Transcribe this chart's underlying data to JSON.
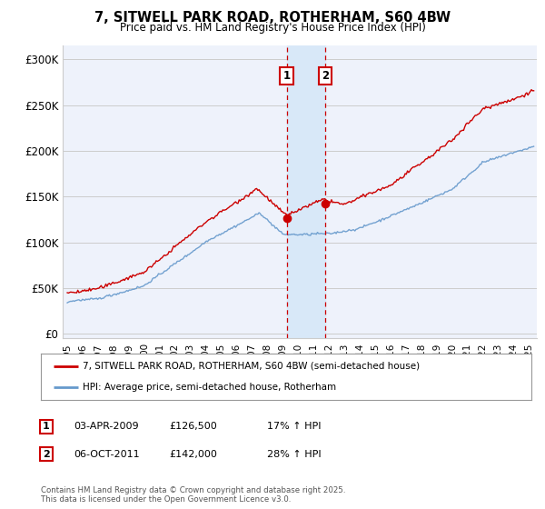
{
  "title": "7, SITWELL PARK ROAD, ROTHERHAM, S60 4BW",
  "subtitle": "Price paid vs. HM Land Registry's House Price Index (HPI)",
  "ylabel_ticks": [
    "£0",
    "£50K",
    "£100K",
    "£150K",
    "£200K",
    "£250K",
    "£300K"
  ],
  "ytick_values": [
    0,
    50000,
    100000,
    150000,
    200000,
    250000,
    300000
  ],
  "ylim": [
    -5000,
    315000
  ],
  "xlim_start": 1994.7,
  "xlim_end": 2025.5,
  "line1_color": "#cc0000",
  "line2_color": "#6699cc",
  "marker1_date": 2009.25,
  "marker2_date": 2011.75,
  "marker1_value": 126500,
  "marker2_value": 142000,
  "legend_line1": "7, SITWELL PARK ROAD, ROTHERHAM, S60 4BW (semi-detached house)",
  "legend_line2": "HPI: Average price, semi-detached house, Rotherham",
  "footer": "Contains HM Land Registry data © Crown copyright and database right 2025.\nThis data is licensed under the Open Government Licence v3.0.",
  "background_color": "#ffffff",
  "plot_bg_color": "#eef2fb",
  "grid_color": "#cccccc",
  "highlight_color": "#d8e8f8"
}
